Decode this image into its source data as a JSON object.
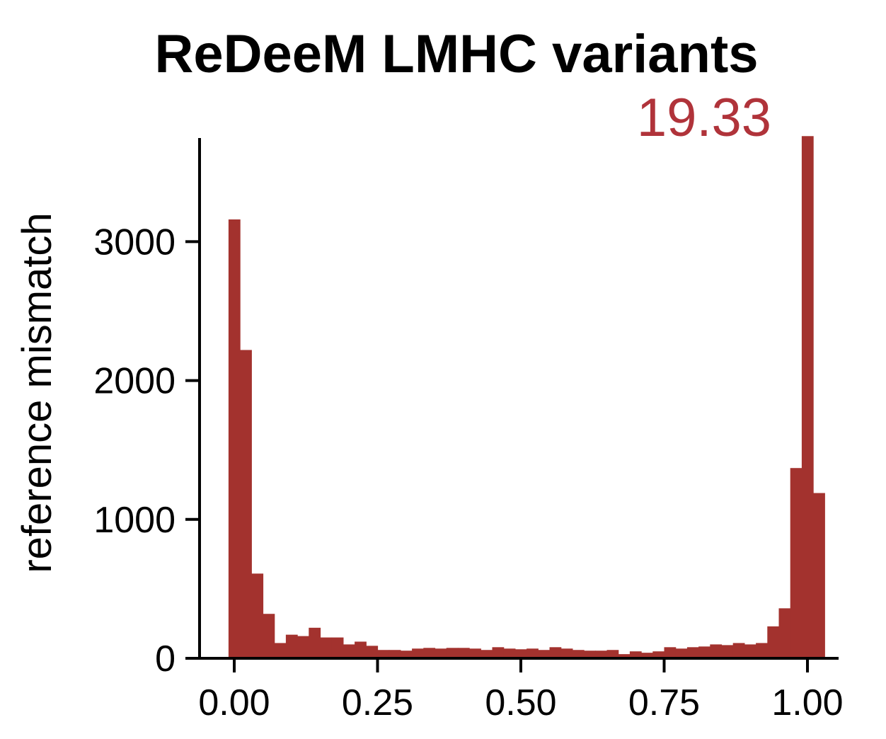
{
  "chart_data": {
    "type": "bar",
    "title": "ReDeeM LMHC variants",
    "annotation": "19.33",
    "xlabel": "",
    "ylabel": "reference mismatch",
    "xlim": [
      -0.075,
      1.1
    ],
    "ylim": [
      0,
      3750
    ],
    "x_ticks": [
      "0.00",
      "0.25",
      "0.50",
      "0.75",
      "1.00"
    ],
    "y_ticks": [
      "0",
      "1000",
      "2000",
      "3000"
    ],
    "grid": false,
    "legend": "none",
    "bin_width": 0.02,
    "bin_start": -0.01,
    "values": [
      3160,
      2220,
      610,
      320,
      110,
      170,
      160,
      220,
      150,
      150,
      100,
      120,
      90,
      60,
      60,
      55,
      70,
      75,
      70,
      75,
      75,
      70,
      60,
      80,
      70,
      65,
      70,
      60,
      80,
      70,
      60,
      55,
      55,
      60,
      30,
      50,
      40,
      50,
      80,
      70,
      80,
      85,
      100,
      95,
      110,
      100,
      110,
      230,
      360,
      1370,
      3760,
      1190
    ],
    "color": "#a3322e",
    "annotation_color": "#b0333a"
  }
}
